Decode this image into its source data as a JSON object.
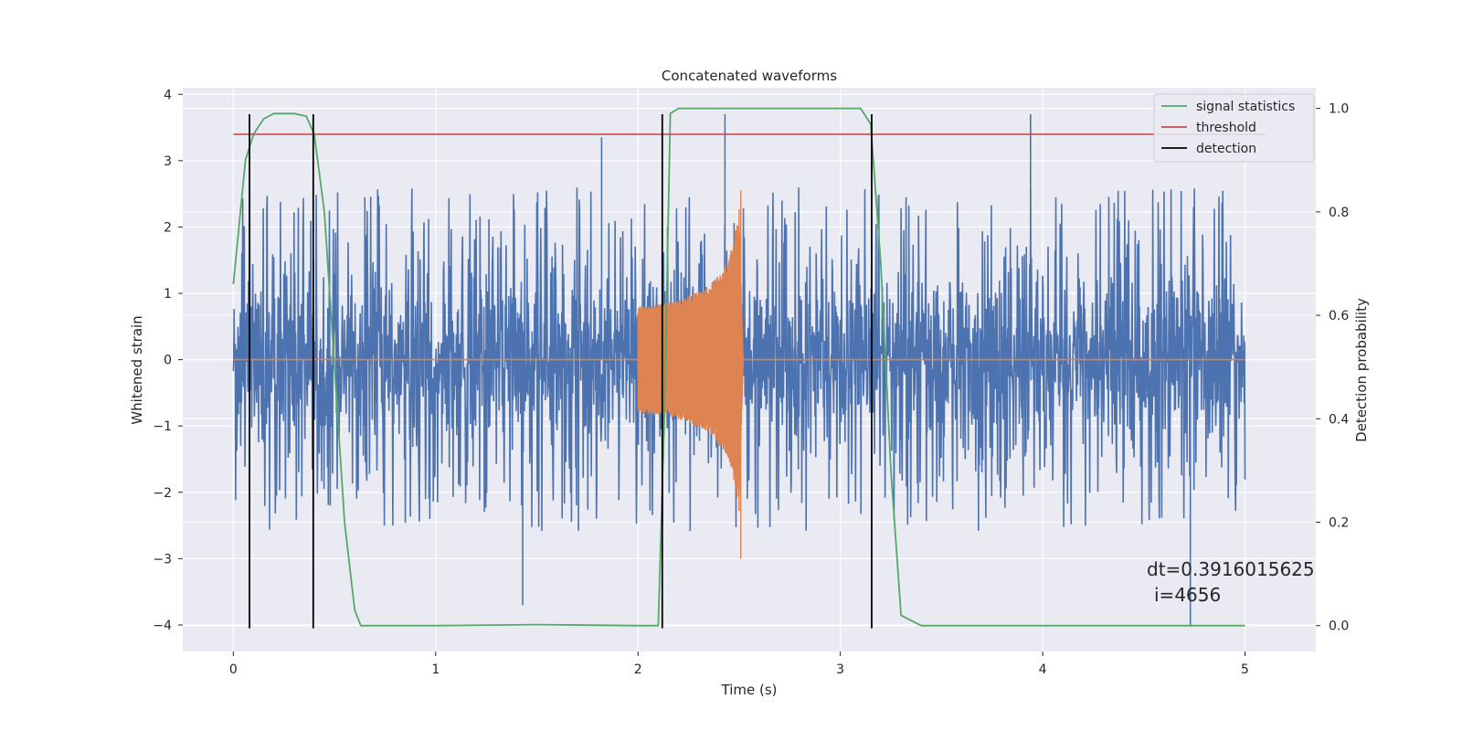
{
  "chart_data": {
    "type": "line",
    "title": "Concatenated waveforms",
    "xlabel": "Time (s)",
    "ylabel": "Whitened strain",
    "y2label": "Detection probability",
    "xlim": [
      -0.25,
      5.35
    ],
    "ylim": [
      -4.4,
      4.1
    ],
    "y2lim": [
      -0.05,
      1.04
    ],
    "xticks": [
      0,
      1,
      2,
      3,
      4,
      5
    ],
    "yticks": [
      -4,
      -3,
      -2,
      -1,
      0,
      1,
      2,
      3,
      4
    ],
    "y2ticks": [
      0.0,
      0.2,
      0.4,
      0.6,
      0.8,
      1.0
    ],
    "xtick_labels": [
      "0",
      "1",
      "2",
      "3",
      "4",
      "5"
    ],
    "ytick_labels": [
      "−4",
      "−3",
      "−2",
      "−1",
      "0",
      "1",
      "2",
      "3",
      "4"
    ],
    "y2tick_labels": [
      "0.0",
      "0.2",
      "0.4",
      "0.6",
      "0.8",
      "1.0"
    ],
    "grid": true,
    "legend_position": "top-right",
    "colors": {
      "strain": "#4c72b0",
      "injection": "#dd8452",
      "signal": "#55a868",
      "threshold": "#c44e52",
      "detection": "#000000",
      "background": "#eaeaf2",
      "grid": "#ffffff"
    },
    "series": [
      {
        "name": "",
        "kind": "noise-band",
        "axis": "left",
        "x_range": [
          0,
          5
        ],
        "core_envelope": 0.9,
        "spike_envelope": 2.4,
        "spike_peaks": [
          {
            "x": 1.82,
            "y": 3.35
          },
          {
            "x": 3.94,
            "y": 3.7
          },
          {
            "x": 4.73,
            "y": -4.0
          },
          {
            "x": 2.43,
            "y": 3.7
          },
          {
            "x": 1.43,
            "y": -3.7
          }
        ]
      },
      {
        "name": "",
        "kind": "injection",
        "axis": "left",
        "x_range": [
          2.0,
          2.52
        ],
        "points": [
          {
            "x": 2.0,
            "amp": 0.8
          },
          {
            "x": 2.2,
            "amp": 0.9
          },
          {
            "x": 2.35,
            "amp": 1.1
          },
          {
            "x": 2.45,
            "amp": 1.5
          },
          {
            "x": 2.5,
            "amp": 2.3
          },
          {
            "x": 2.52,
            "amp": 0.05
          }
        ],
        "zero_line_x": [
          0,
          5
        ]
      },
      {
        "name": "signal statistics",
        "axis": "right",
        "x": [
          0,
          0.03,
          0.06,
          0.1,
          0.15,
          0.2,
          0.3,
          0.36,
          0.4,
          0.45,
          0.5,
          0.55,
          0.6,
          0.63,
          1.0,
          1.5,
          2.0,
          2.1,
          2.13,
          2.16,
          2.2,
          2.5,
          3.0,
          3.1,
          3.15,
          3.2,
          3.25,
          3.3,
          3.4,
          4.0,
          5.0
        ],
        "y": [
          0.66,
          0.78,
          0.9,
          0.95,
          0.98,
          0.99,
          0.99,
          0.985,
          0.95,
          0.8,
          0.5,
          0.2,
          0.03,
          0.0,
          0.0,
          0.002,
          0.0,
          0.0,
          0.4,
          0.99,
          1.0,
          1.0,
          1.0,
          1.0,
          0.97,
          0.7,
          0.3,
          0.02,
          0.0,
          0.0,
          0.0
        ]
      },
      {
        "name": "threshold",
        "axis": "right",
        "x": [
          0,
          5.1
        ],
        "y": [
          0.95,
          0.95
        ]
      },
      {
        "name": "detection",
        "axis": "left",
        "vlines": [
          0.08,
          0.395,
          2.12,
          3.155
        ],
        "ymin": -4.05,
        "ymax": 3.7
      }
    ],
    "annotation": {
      "line1": "dt=0.3916015625",
      "line2": "i=4656"
    }
  }
}
